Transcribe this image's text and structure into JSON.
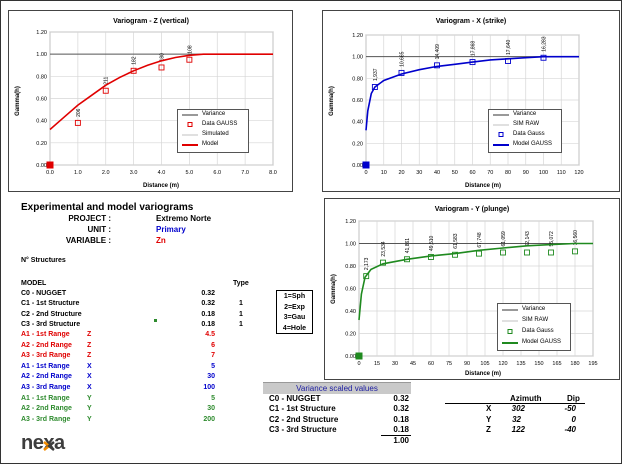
{
  "charts": {
    "z": {
      "title": "Variogram - Z (vertical)",
      "xlabel": "Distance (m)",
      "ylabel": "Gamma(h)",
      "x_ticks": [
        "0.0",
        "1.0",
        "2.0",
        "3.0",
        "4.0",
        "5.0",
        "6.0",
        "7.0",
        "8.0"
      ],
      "y_ticks": [
        "0.00",
        "0.20",
        "0.40",
        "0.60",
        "0.80",
        "1.00",
        "1.20"
      ],
      "legend": [
        "Variance",
        "Data GAUSS",
        "Simulated",
        "Model"
      ],
      "point_labels": [
        "206",
        "211",
        "182",
        "180",
        "108"
      ]
    },
    "x": {
      "title": "Variogram - X (strike)",
      "xlabel": "Distance (m)",
      "ylabel": "Gamma(h)",
      "x_ticks": [
        "0",
        "10",
        "20",
        "30",
        "40",
        "50",
        "60",
        "70",
        "80",
        "90",
        "100",
        "110",
        "120"
      ],
      "y_ticks": [
        "0.00",
        "0.20",
        "0.40",
        "0.60",
        "0.80",
        "1.00",
        "1.20"
      ],
      "legend": [
        "Variance",
        "SIM RAW",
        "Data Gauss",
        "Model GAUSS"
      ],
      "point_labels": [
        "1,937",
        "10,665",
        "14,409",
        "17,868",
        "17,640",
        "16,283"
      ]
    },
    "y": {
      "title": "Variogram - Y (plunge)",
      "xlabel": "Distance (m)",
      "ylabel": "Gamma(h)",
      "x_ticks": [
        "0",
        "15",
        "30",
        "45",
        "60",
        "75",
        "90",
        "105",
        "120",
        "135",
        "150",
        "165",
        "180",
        "195"
      ],
      "y_ticks": [
        "0.00",
        "0.20",
        "0.40",
        "0.60",
        "0.80",
        "1.00",
        "1.20"
      ],
      "legend": [
        "Variance",
        "SIM RAW",
        "Data Gauss",
        "Model GAUSS"
      ],
      "point_labels": [
        "2,173",
        "23,534",
        "41,861",
        "49,510",
        "61,583",
        "67,748",
        "61,059",
        "62,143",
        "55,072",
        "16,560"
      ]
    }
  },
  "chart_data": [
    {
      "type": "line",
      "title": "Variogram - Z (vertical)",
      "xlabel": "Distance (m)",
      "ylabel": "Gamma(h)",
      "xlim": [
        0,
        8
      ],
      "ylim": [
        0,
        1.2
      ],
      "series": [
        {
          "name": "Variance",
          "x": [
            0,
            8
          ],
          "y": [
            1.0,
            1.0
          ]
        },
        {
          "name": "Data GAUSS",
          "x": [
            0,
            1,
            2,
            3,
            4,
            5
          ],
          "y": [
            0.0,
            0.38,
            0.67,
            0.85,
            0.88,
            0.95
          ]
        },
        {
          "name": "Model",
          "x": [
            0,
            0.5,
            1,
            1.5,
            2,
            2.5,
            3,
            3.5,
            4,
            4.5,
            5,
            5.5,
            6,
            7,
            8
          ],
          "y": [
            0.32,
            0.43,
            0.54,
            0.63,
            0.72,
            0.79,
            0.85,
            0.9,
            0.94,
            0.97,
            0.99,
            1.0,
            1.0,
            1.0,
            1.0
          ]
        }
      ],
      "annotations": [
        "206",
        "211",
        "182",
        "180",
        "108"
      ]
    },
    {
      "type": "line",
      "title": "Variogram - X (strike)",
      "xlabel": "Distance (m)",
      "ylabel": "Gamma(h)",
      "xlim": [
        0,
        120
      ],
      "ylim": [
        0,
        1.2
      ],
      "series": [
        {
          "name": "Variance",
          "x": [
            0,
            120
          ],
          "y": [
            1.0,
            1.0
          ]
        },
        {
          "name": "Data Gauss",
          "x": [
            0,
            5,
            20,
            40,
            60,
            80,
            100
          ],
          "y": [
            0.0,
            0.72,
            0.85,
            0.92,
            0.95,
            0.96,
            0.99
          ]
        },
        {
          "name": "Model GAUSS",
          "x": [
            0,
            1,
            3,
            5,
            10,
            20,
            30,
            40,
            50,
            60,
            70,
            80,
            90,
            100,
            110,
            120
          ],
          "y": [
            0.32,
            0.5,
            0.66,
            0.72,
            0.78,
            0.84,
            0.88,
            0.91,
            0.93,
            0.95,
            0.97,
            0.98,
            0.99,
            1.0,
            1.0,
            1.0
          ]
        }
      ],
      "annotations": [
        "1,937",
        "10,665",
        "14,409",
        "17,868",
        "17,640",
        "16,283"
      ]
    },
    {
      "type": "line",
      "title": "Variogram - Y (plunge)",
      "xlabel": "Distance (m)",
      "ylabel": "Gamma(h)",
      "xlim": [
        0,
        195
      ],
      "ylim": [
        0,
        1.2
      ],
      "series": [
        {
          "name": "Variance",
          "x": [
            0,
            195
          ],
          "y": [
            1.0,
            1.0
          ]
        },
        {
          "name": "Data Gauss",
          "x": [
            0,
            6,
            20,
            40,
            60,
            80,
            100,
            120,
            140,
            160,
            180
          ],
          "y": [
            0.0,
            0.71,
            0.83,
            0.86,
            0.88,
            0.9,
            0.91,
            0.92,
            0.92,
            0.92,
            0.93
          ]
        },
        {
          "name": "Model GAUSS",
          "x": [
            0,
            2,
            5,
            10,
            20,
            40,
            60,
            80,
            100,
            120,
            140,
            160,
            180,
            195
          ],
          "y": [
            0.32,
            0.55,
            0.7,
            0.77,
            0.82,
            0.86,
            0.89,
            0.91,
            0.94,
            0.96,
            0.98,
            0.99,
            1.0,
            1.0
          ]
        }
      ],
      "annotations": [
        "2,173",
        "23,534",
        "41,861",
        "49,510",
        "61,583",
        "67,748",
        "61,059",
        "62,143",
        "55,072",
        "16,560"
      ]
    }
  ],
  "info": {
    "heading": "Experimental and model variograms",
    "project_label": "PROJECT :",
    "project_value": "Extremo Norte",
    "unit_label": "UNIT :",
    "unit_value": "Primary",
    "variable_label": "VARIABLE :",
    "variable_value": "Zn"
  },
  "structures": {
    "count_label": "N° Structures",
    "model_header": "MODEL",
    "type_header": "Type",
    "rows": [
      {
        "label": "C0 - NUGGET",
        "value": "0.32",
        "type": ""
      },
      {
        "label": "C1 - 1st Structure",
        "value": "0.32",
        "type": "1"
      },
      {
        "label": "C2 - 2nd Structure",
        "value": "0.18",
        "type": "1"
      },
      {
        "label": "C3 - 3rd Structure",
        "value": "0.18",
        "type": "1"
      }
    ],
    "ranges": [
      {
        "label": "A1 - 1st Range",
        "axis": "Z",
        "value": "4.5"
      },
      {
        "label": "A2 - 2nd Range",
        "axis": "Z",
        "value": "6"
      },
      {
        "label": "A3 - 3rd Range",
        "axis": "Z",
        "value": "7"
      },
      {
        "label": "A1 - 1st Range",
        "axis": "X",
        "value": "5"
      },
      {
        "label": "A2 - 2nd Range",
        "axis": "X",
        "value": "30"
      },
      {
        "label": "A3 - 3rd Range",
        "axis": "X",
        "value": "100"
      },
      {
        "label": "A1 - 1st Range",
        "axis": "Y",
        "value": "5"
      },
      {
        "label": "A2 - 2nd Range",
        "axis": "Y",
        "value": "30"
      },
      {
        "label": "A3 - 3rd Range",
        "axis": "Y",
        "value": "200"
      }
    ],
    "type_codes": [
      "1=Sph",
      "2=Exp",
      "3=Gau",
      "4=Hole"
    ]
  },
  "variance": {
    "title": "Variance scaled values",
    "rows": [
      {
        "label": "C0 - NUGGET",
        "value": "0.32"
      },
      {
        "label": "C1 - 1st Structure",
        "value": "0.32"
      },
      {
        "label": "C2 - 2nd Structure",
        "value": "0.18"
      },
      {
        "label": "C3 - 3rd Structure",
        "value": "0.18"
      }
    ],
    "total": "1.00"
  },
  "orientation": {
    "azimuth_header": "Azimuth",
    "dip_header": "Dip",
    "rows": [
      {
        "axis": "X",
        "azimuth": "302",
        "dip": "-50"
      },
      {
        "axis": "Y",
        "azimuth": "32",
        "dip": "0"
      },
      {
        "axis": "Z",
        "azimuth": "122",
        "dip": "-40"
      }
    ]
  },
  "logo": {
    "text": "nexa"
  },
  "colors": {
    "z_model": "#e00000",
    "z_data": "#e00000",
    "x_model": "#0000cc",
    "x_data": "#0000cc",
    "y_model": "#1f8a1f",
    "y_data": "#1f8a1f",
    "variance": "#555555",
    "red_text": "#e00000",
    "blue_text": "#0000cc",
    "green_text": "#2e8b2e"
  }
}
